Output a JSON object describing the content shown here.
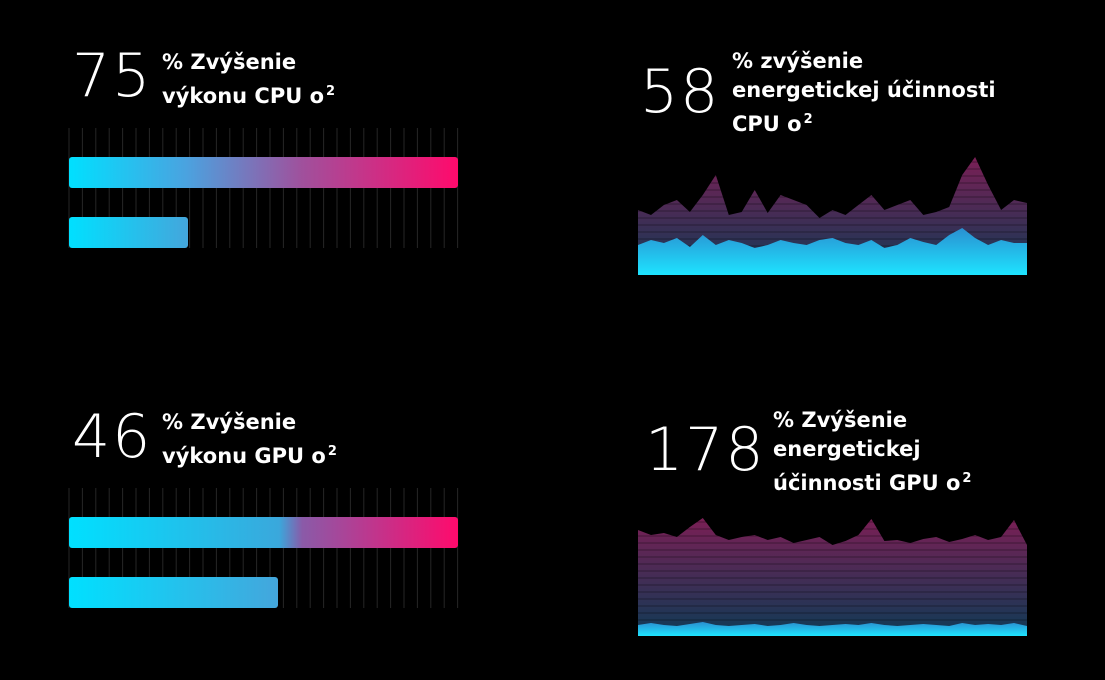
{
  "stats": [
    {
      "number": "75",
      "lines": [
        "% Zvýšenie",
        "výkonu CPU o"
      ],
      "sup": "2"
    },
    {
      "number": "58",
      "lines": [
        "% zvýšenie",
        "energetickej účinnosti",
        "CPU o"
      ],
      "sup": "2"
    },
    {
      "number": "46",
      "lines": [
        "% Zvýšenie",
        "výkonu GPU o"
      ],
      "sup": "2"
    },
    {
      "number": "178",
      "lines": [
        "% Zvýšenie",
        "energetickej",
        "účinnosti GPU o"
      ],
      "sup": "2"
    }
  ]
}
